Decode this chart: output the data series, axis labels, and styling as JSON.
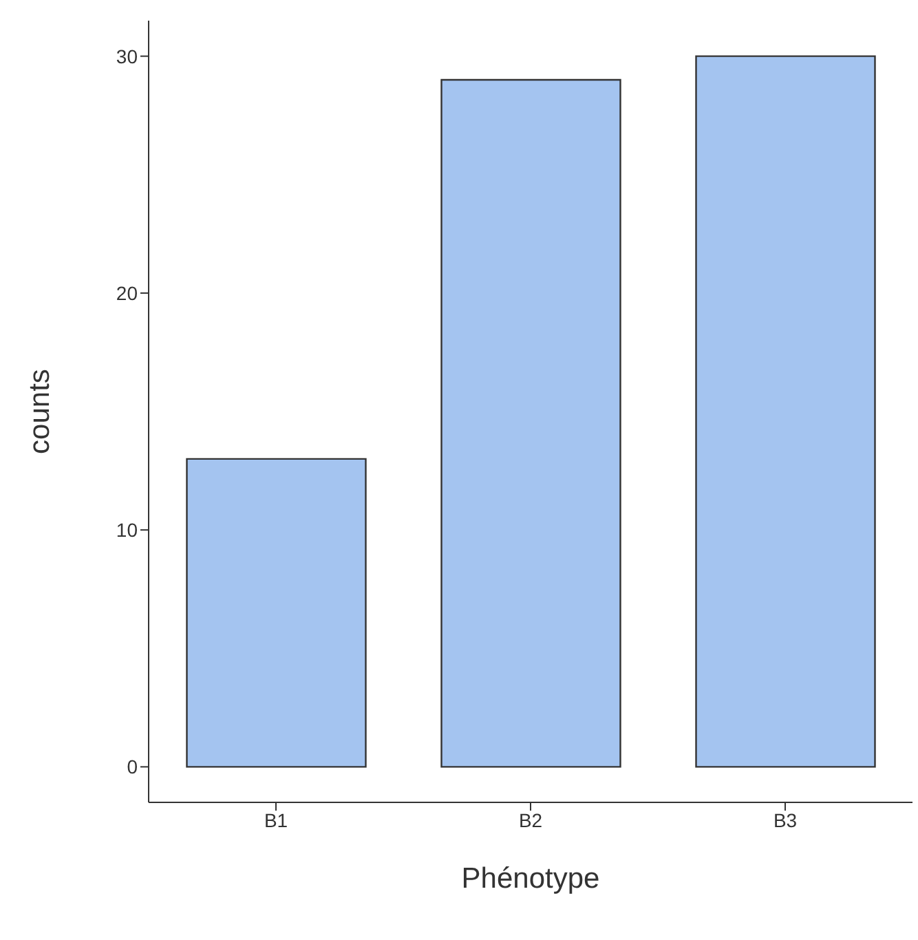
{
  "chart_data": {
    "type": "bar",
    "xlabel": "Phénotype",
    "ylabel": "counts",
    "categories": [
      "B1",
      "B2",
      "B3"
    ],
    "values": [
      13,
      29,
      30
    ],
    "color": "#a4c4f0",
    "ylim": [
      -1.5,
      31.5
    ],
    "yticks": [
      0,
      10,
      20,
      30
    ],
    "grid": false,
    "legend": false
  }
}
